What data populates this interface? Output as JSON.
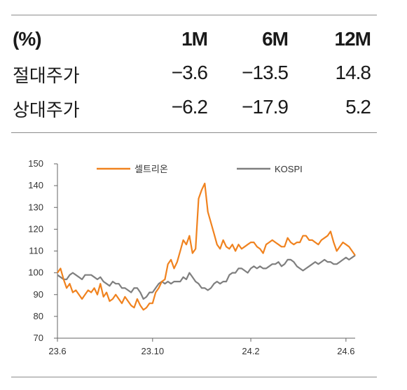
{
  "table": {
    "header": [
      "(%)",
      "1M",
      "6M",
      "12M"
    ],
    "rows": [
      {
        "label": "절대주가",
        "m1": "−3.6",
        "m6": "−13.5",
        "m12": "14.8"
      },
      {
        "label": "상대주가",
        "m1": "−6.2",
        "m6": "−17.9",
        "m12": "5.2"
      }
    ]
  },
  "chart_data": {
    "type": "line",
    "ylim": [
      70,
      150
    ],
    "yticks": [
      "70",
      "80",
      "90",
      "100",
      "110",
      "120",
      "130",
      "140",
      "150"
    ],
    "xticks": [
      "23.6",
      "23.10",
      "24.2",
      "24.6"
    ],
    "xtick_index": [
      0,
      31,
      63,
      94
    ],
    "legend_position": "top",
    "series": [
      {
        "name": "셀트리온",
        "color": "#f0821e",
        "values": [
          100,
          102,
          97,
          93,
          95,
          91,
          92,
          90,
          88,
          90,
          92,
          91,
          93,
          90,
          95,
          89,
          91,
          87,
          88,
          90,
          88,
          86,
          89,
          87,
          85,
          84,
          88,
          85,
          83,
          84,
          86,
          86,
          91,
          93,
          96,
          97,
          104,
          106,
          102,
          105,
          110,
          115,
          113,
          117,
          109,
          111,
          134,
          138,
          141,
          128,
          123,
          118,
          113,
          111,
          115,
          112,
          111,
          113,
          110,
          113,
          111,
          112,
          113,
          114,
          114,
          112,
          111,
          109,
          113,
          114,
          115,
          114,
          113,
          112,
          112,
          116,
          114,
          113,
          114,
          114,
          117,
          117,
          115,
          115,
          114,
          113,
          115,
          116,
          117,
          119,
          114,
          110,
          112,
          114,
          113,
          112,
          110,
          108
        ]
      },
      {
        "name": "KOSPI",
        "color": "#7f7f7f",
        "values": [
          99,
          98,
          97,
          97,
          99,
          100,
          99,
          98,
          97,
          99,
          99,
          99,
          98,
          97,
          98,
          96,
          95,
          94,
          96,
          95,
          95,
          93,
          93,
          92,
          91,
          93,
          93,
          91,
          88,
          89,
          91,
          91,
          93,
          95,
          96,
          95,
          96,
          95,
          96,
          96,
          96,
          98,
          97,
          100,
          98,
          96,
          95,
          93,
          93,
          92,
          93,
          95,
          96,
          95,
          96,
          96,
          99,
          100,
          100,
          102,
          102,
          101,
          100,
          102,
          103,
          102,
          103,
          102,
          102,
          103,
          104,
          104,
          105,
          103,
          104,
          106,
          106,
          105,
          103,
          102,
          101,
          102,
          103,
          104,
          105,
          104,
          105,
          106,
          105,
          105,
          104,
          104,
          105,
          106,
          107,
          106,
          107,
          108
        ]
      }
    ]
  }
}
